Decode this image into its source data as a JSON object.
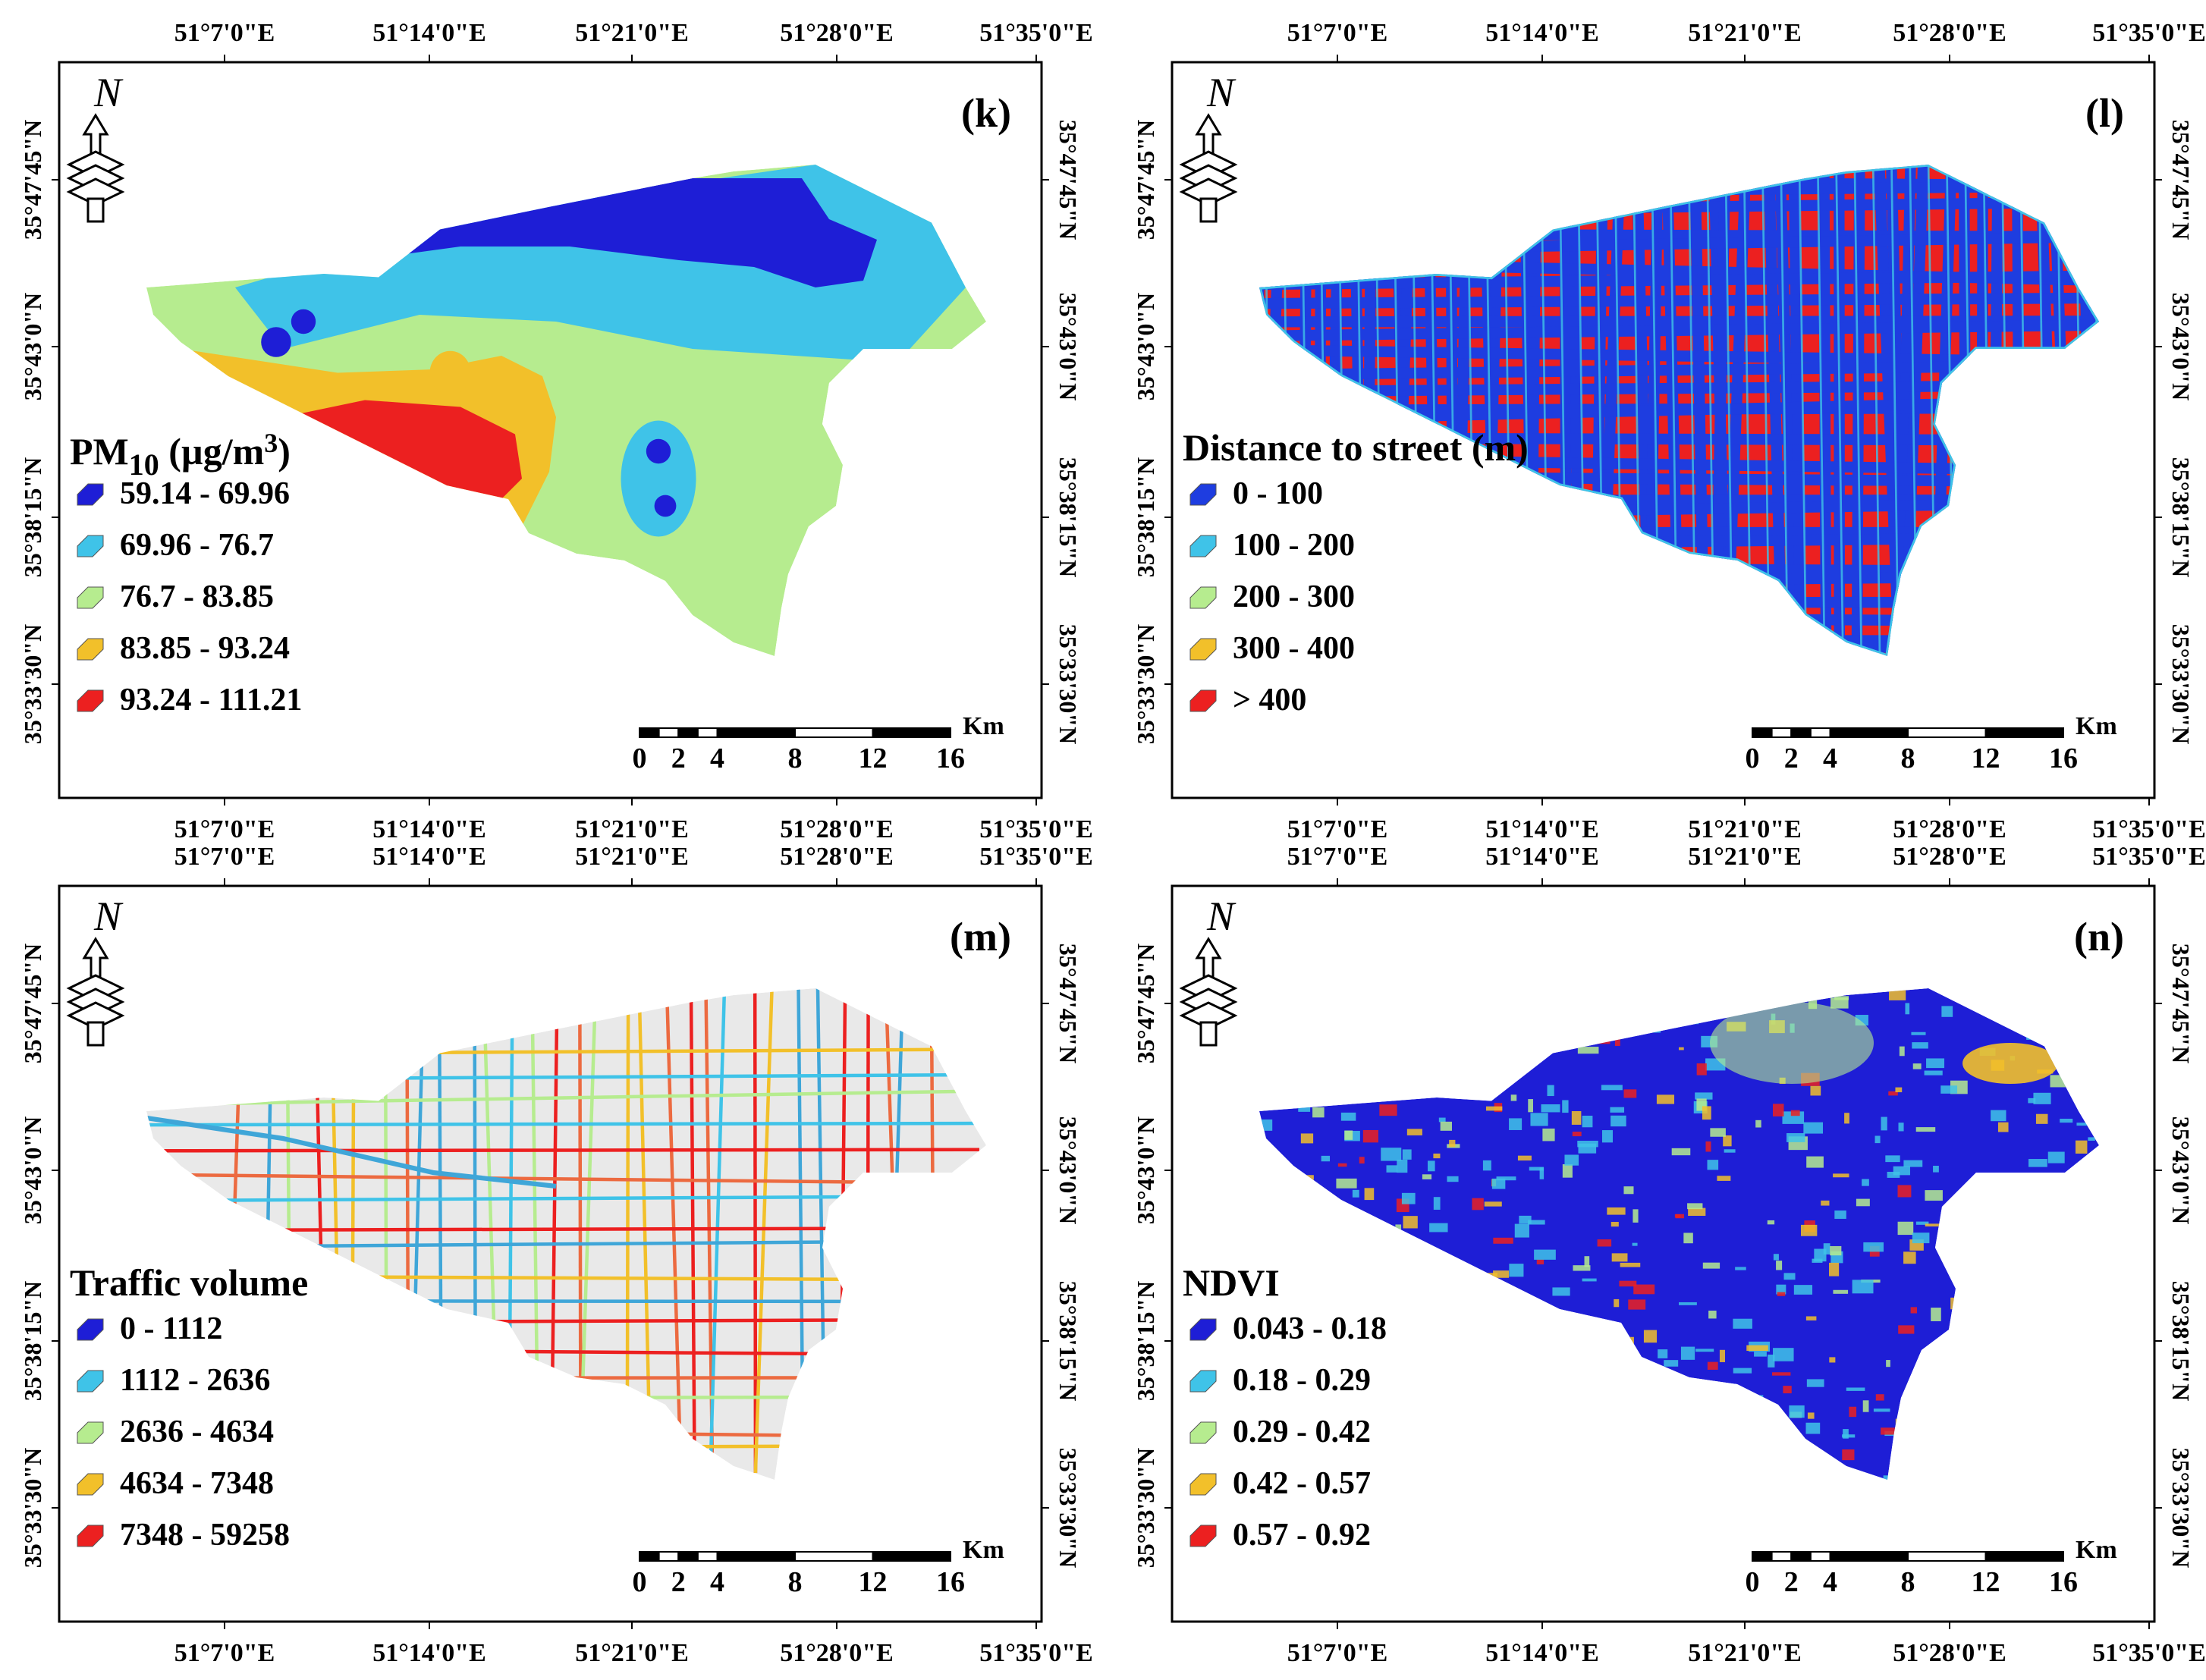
{
  "axes": {
    "lon_ticks": [
      "51°7'0\"E",
      "51°14'0\"E",
      "51°21'0\"E",
      "51°28'0\"E",
      "51°35'0\"E"
    ],
    "lat_ticks": [
      "35°47'45\"N",
      "35°43'0\"N",
      "35°38'15\"N",
      "35°33'30\"N"
    ]
  },
  "scale_bar": {
    "unit": "Km",
    "labels": [
      "0",
      "2",
      "4",
      "8",
      "12",
      "16"
    ]
  },
  "north_label": "N",
  "panels": [
    {
      "id": "k",
      "label": "(k)",
      "title": "PM",
      "title_sub": "10",
      "title_unit": " (µg/m",
      "title_sup": "3",
      "title_close": ")",
      "legend": [
        {
          "range": "59.14 - 69.96",
          "color": "#1e1ed6"
        },
        {
          "range": "69.96 - 76.7",
          "color": "#3fc3e8"
        },
        {
          "range": "76.7 - 83.85",
          "color": "#b6ec8f"
        },
        {
          "range": "83.85 - 93.24",
          "color": "#f2c02a"
        },
        {
          "range": "93.24 - 111.21",
          "color": "#ec2020"
        }
      ]
    },
    {
      "id": "l",
      "label": "(l)",
      "title": "Distance to street (m)",
      "legend": [
        {
          "range": "0 - 100",
          "color": "#1e3de0"
        },
        {
          "range": "100 - 200",
          "color": "#3fc3e8"
        },
        {
          "range": "200 - 300",
          "color": "#b6ec8f"
        },
        {
          "range": "300 - 400",
          "color": "#f2c02a"
        },
        {
          "range": "> 400",
          "color": "#ec2020"
        }
      ]
    },
    {
      "id": "m",
      "label": "(m)",
      "title": "Traffic volume",
      "legend": [
        {
          "range": "0 - 1112",
          "color": "#1e1ed6"
        },
        {
          "range": "1112 - 2636",
          "color": "#3fc3e8"
        },
        {
          "range": "2636 - 4634",
          "color": "#b6ec8f"
        },
        {
          "range": "4634 - 7348",
          "color": "#f2c02a"
        },
        {
          "range": "7348 - 59258",
          "color": "#ec2020"
        }
      ]
    },
    {
      "id": "n",
      "label": "(n)",
      "title": "NDVI",
      "legend": [
        {
          "range": "0.043 - 0.18",
          "color": "#1e1ed6"
        },
        {
          "range": "0.18 - 0.29",
          "color": "#3fc3e8"
        },
        {
          "range": "0.29 - 0.42",
          "color": "#b6ec8f"
        },
        {
          "range": "0.42 - 0.57",
          "color": "#f2c02a"
        },
        {
          "range": "0.57 - 0.92",
          "color": "#ec2020"
        }
      ]
    }
  ]
}
